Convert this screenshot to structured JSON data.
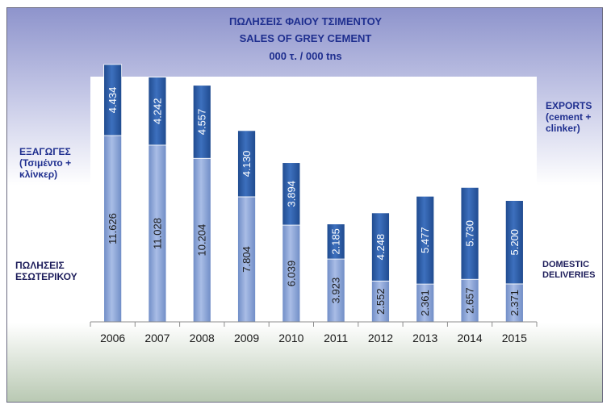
{
  "chart_data": {
    "type": "bar",
    "stacked": true,
    "title_lines": [
      "ΠΩΛΗΣΕΙΣ ΦΑΙΟΥ ΤΣΙΜΕΝΤΟΥ",
      "SALES OF GREY CEMENT",
      "000 τ. / 000 tns"
    ],
    "categories": [
      "2006",
      "2007",
      "2008",
      "2009",
      "2010",
      "2011",
      "2012",
      "2013",
      "2014",
      "2015"
    ],
    "series": [
      {
        "values": [
          11.626,
          11.028,
          10.204,
          7.804,
          6.039,
          3.923,
          2.552,
          2.361,
          2.657,
          2.371
        ],
        "labels": [
          "11.626",
          "11.028",
          "10.204",
          "7.804",
          "6.039",
          "3.923",
          "2.552",
          "2.361",
          "2.657",
          "2.371"
        ],
        "color": "#8ea6d6"
      },
      {
        "values": [
          4.434,
          4.242,
          4.557,
          4.13,
          3.894,
          2.185,
          4.248,
          5.477,
          5.73,
          5.2
        ],
        "labels": [
          "4.434",
          "4.242",
          "4.557",
          "4.130",
          "3.894",
          "2.185",
          "4.248",
          "5.477",
          "5.730",
          "5.200"
        ],
        "color": "#2f5ea6"
      }
    ],
    "ylim": [
      0,
      15.3
    ],
    "grid": false,
    "legend": {
      "left_top": [
        "ΕΞΑΓΩΓΕΣ",
        "(Τσιμέντο +",
        "κλίνκερ)"
      ],
      "left_bottom": [
        "ΠΩΛΗΣΕΙΣ",
        "ΕΣΩΤΕΡΙΚΟΥ"
      ],
      "right_top": [
        "EXPORTS",
        "(cement +",
        "clinker)"
      ],
      "right_bottom": [
        "DOMESTIC",
        "DELIVERIES"
      ]
    }
  }
}
